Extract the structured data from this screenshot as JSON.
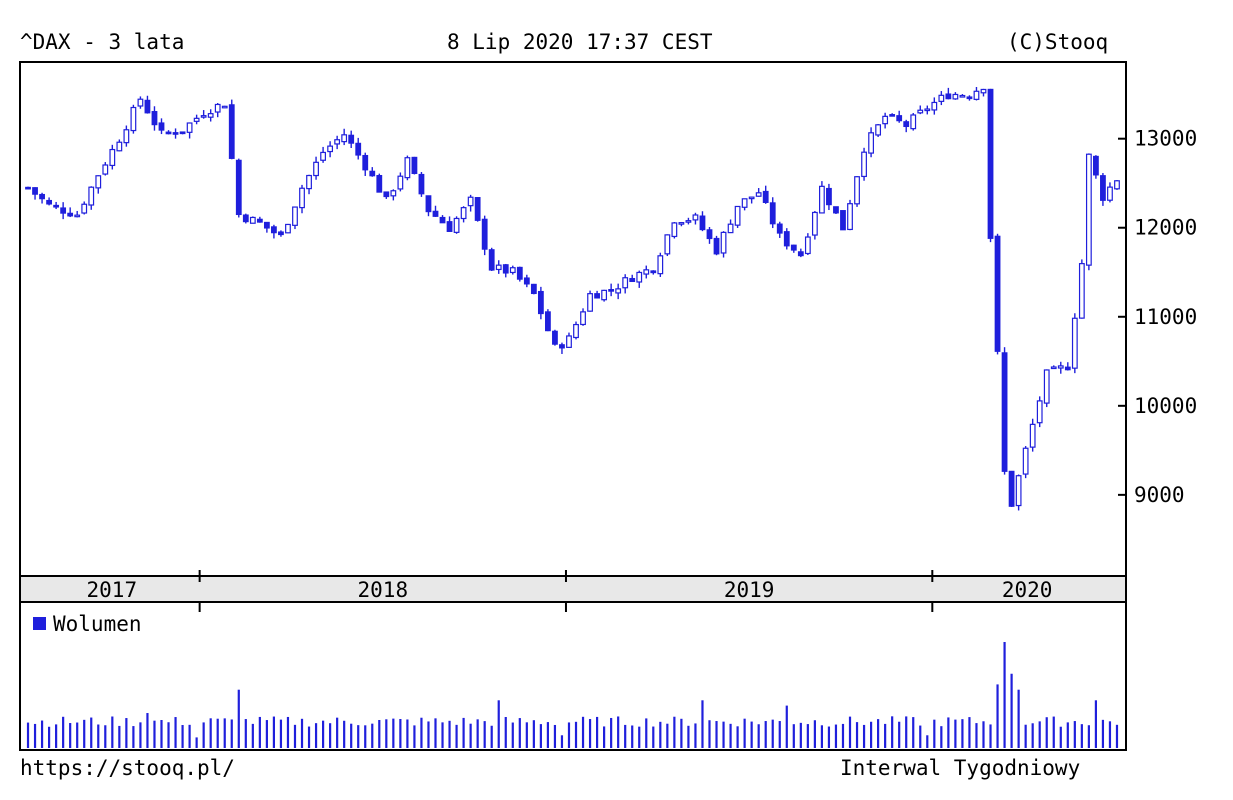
{
  "header": {
    "symbol_title": "^DAX - 3 lata",
    "timestamp": "8 Lip 2020 17:37 CEST",
    "copyright": "(C)Stooq"
  },
  "footer": {
    "url": "https://stooq.pl/",
    "interval": "Interwal Tygodniowy"
  },
  "colors": {
    "series": "#1f1fdc",
    "axis": "#000000",
    "band": "#e8e8e8"
  },
  "chart_data": [
    {
      "type": "candlestick",
      "title": "^DAX - 3 lata",
      "xlabel": "",
      "ylabel": "",
      "y_ticks": [
        13000,
        12000,
        11000,
        10000,
        9000
      ],
      "ylim": [
        8100,
        13850
      ],
      "x_range": [
        "2017-07-10",
        "2020-07-08"
      ],
      "x_year_labels": [
        "2017",
        "2018",
        "2019",
        "2020"
      ],
      "grid": false,
      "interval": "weekly",
      "closes": [
        {
          "date": "2017-07-14",
          "value": 12450
        },
        {
          "date": "2017-08-04",
          "value": 12250
        },
        {
          "date": "2017-09-01",
          "value": 12150
        },
        {
          "date": "2017-09-22",
          "value": 12600
        },
        {
          "date": "2017-10-13",
          "value": 13000
        },
        {
          "date": "2017-11-03",
          "value": 13450
        },
        {
          "date": "2017-11-24",
          "value": 13050
        },
        {
          "date": "2017-12-15",
          "value": 13100
        },
        {
          "date": "2018-01-05",
          "value": 13300
        },
        {
          "date": "2018-01-26",
          "value": 13400
        },
        {
          "date": "2018-02-09",
          "value": 12150
        },
        {
          "date": "2018-03-02",
          "value": 12050
        },
        {
          "date": "2018-03-23",
          "value": 11900
        },
        {
          "date": "2018-04-13",
          "value": 12450
        },
        {
          "date": "2018-05-04",
          "value": 12850
        },
        {
          "date": "2018-05-25",
          "value": 13050
        },
        {
          "date": "2018-06-15",
          "value": 12700
        },
        {
          "date": "2018-07-06",
          "value": 12300
        },
        {
          "date": "2018-07-27",
          "value": 12750
        },
        {
          "date": "2018-08-17",
          "value": 12200
        },
        {
          "date": "2018-09-07",
          "value": 12000
        },
        {
          "date": "2018-09-28",
          "value": 12300
        },
        {
          "date": "2018-10-19",
          "value": 11550
        },
        {
          "date": "2018-11-09",
          "value": 11500
        },
        {
          "date": "2018-11-30",
          "value": 11250
        },
        {
          "date": "2018-12-21",
          "value": 10650
        },
        {
          "date": "2019-01-04",
          "value": 10750
        },
        {
          "date": "2019-01-25",
          "value": 11250
        },
        {
          "date": "2019-02-15",
          "value": 11300
        },
        {
          "date": "2019-03-08",
          "value": 11450
        },
        {
          "date": "2019-03-29",
          "value": 11550
        },
        {
          "date": "2019-04-19",
          "value": 12100
        },
        {
          "date": "2019-05-10",
          "value": 12100
        },
        {
          "date": "2019-05-31",
          "value": 11750
        },
        {
          "date": "2019-06-21",
          "value": 12250
        },
        {
          "date": "2019-07-12",
          "value": 12400
        },
        {
          "date": "2019-08-02",
          "value": 11900
        },
        {
          "date": "2019-08-23",
          "value": 11700
        },
        {
          "date": "2019-09-13",
          "value": 12450
        },
        {
          "date": "2019-10-04",
          "value": 12000
        },
        {
          "date": "2019-10-25",
          "value": 12900
        },
        {
          "date": "2019-11-15",
          "value": 13250
        },
        {
          "date": "2019-12-06",
          "value": 13150
        },
        {
          "date": "2019-12-27",
          "value": 13350
        },
        {
          "date": "2020-01-17",
          "value": 13500
        },
        {
          "date": "2020-02-07",
          "value": 13500
        },
        {
          "date": "2020-02-21",
          "value": 13600
        },
        {
          "date": "2020-02-28",
          "value": 11900
        },
        {
          "date": "2020-03-13",
          "value": 9250
        },
        {
          "date": "2020-03-20",
          "value": 8900
        },
        {
          "date": "2020-04-03",
          "value": 9500
        },
        {
          "date": "2020-04-24",
          "value": 10350
        },
        {
          "date": "2020-05-15",
          "value": 10450
        },
        {
          "date": "2020-05-29",
          "value": 11600
        },
        {
          "date": "2020-06-05",
          "value": 12800
        },
        {
          "date": "2020-06-19",
          "value": 12350
        },
        {
          "date": "2020-07-03",
          "value": 12550
        },
        {
          "date": "2020-07-08",
          "value": 12700
        }
      ]
    },
    {
      "type": "bar",
      "title": "",
      "series": [
        {
          "name": "Wolumen",
          "interval": "weekly"
        }
      ],
      "xlabel": "",
      "ylabel": "",
      "relative_volume": {
        "baseline": 0.25,
        "peaks": [
          {
            "date": "2017-11-10",
            "value": 0.33
          },
          {
            "date": "2018-02-09",
            "value": 0.55
          },
          {
            "date": "2018-10-26",
            "value": 0.45
          },
          {
            "date": "2019-05-17",
            "value": 0.45
          },
          {
            "date": "2019-08-09",
            "value": 0.4
          },
          {
            "date": "2020-03-06",
            "value": 0.6
          },
          {
            "date": "2020-03-13",
            "value": 1.0
          },
          {
            "date": "2020-03-20",
            "value": 0.7
          },
          {
            "date": "2020-03-27",
            "value": 0.55
          },
          {
            "date": "2020-06-12",
            "value": 0.45
          }
        ],
        "low_weeks": [
          {
            "date": "2017-12-29",
            "value": 0.1
          },
          {
            "date": "2018-12-28",
            "value": 0.12
          },
          {
            "date": "2019-12-27",
            "value": 0.12
          },
          {
            "date": "2020-07-08",
            "value": 0.1
          }
        ]
      }
    }
  ]
}
